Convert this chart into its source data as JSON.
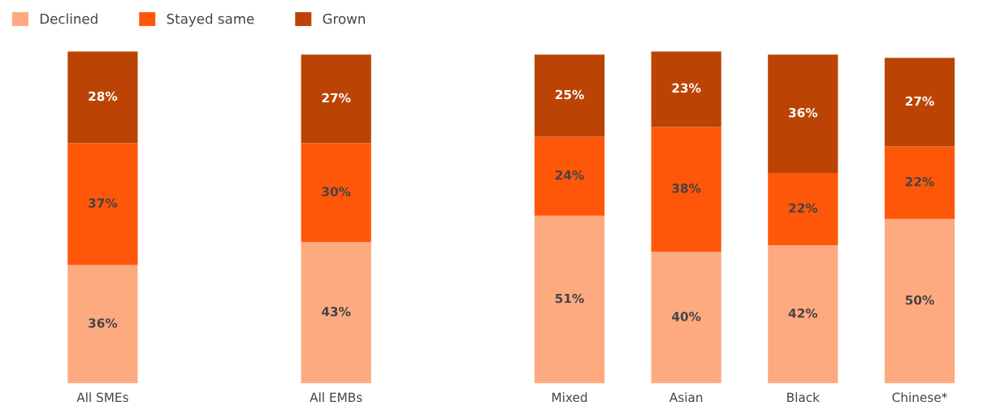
{
  "chart_data": {
    "type": "bar",
    "stacked": true,
    "legend": "top left",
    "grid": false,
    "categories": [
      "All SMEs",
      null,
      "All EMBs",
      null,
      "Mixed",
      "Asian",
      "Black",
      "Chinese*"
    ],
    "series": [
      {
        "name": "Declined",
        "color": "#fdaa80",
        "values": [
          36,
          null,
          43,
          null,
          51,
          40,
          42,
          50
        ],
        "value_labels": [
          "36%",
          null,
          "43%",
          null,
          "51%",
          "40%",
          "42%",
          "50%"
        ]
      },
      {
        "name": "Stayed same",
        "color": "#ff570a",
        "values": [
          37,
          null,
          30,
          null,
          24,
          38,
          22,
          22
        ],
        "value_labels": [
          "37%",
          null,
          "30%",
          null,
          "24%",
          "38%",
          "22%",
          "22%"
        ]
      },
      {
        "name": "Grown",
        "color": "#bb4405",
        "values": [
          28,
          null,
          27,
          null,
          25,
          23,
          36,
          27
        ],
        "value_labels": [
          "28%",
          null,
          "27%",
          null,
          "25%",
          "23%",
          "36%",
          "27%"
        ]
      }
    ]
  }
}
